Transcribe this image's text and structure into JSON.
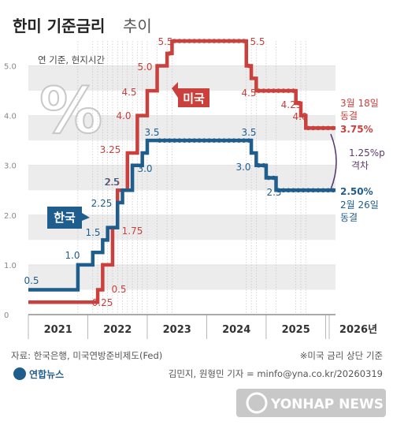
{
  "title": "한미 기준금리",
  "title_suffix": "추이",
  "note_top": "연 기준, 현지시간",
  "percent_symbol": "%",
  "source": "자료: 한국은행, 미국연방준비제도(Fed)",
  "note_right": "※미국 금리 상단 기준",
  "credit": "김민지, 원형민 기자 = minfo@yna.co.kr/20260319",
  "logo_text": "연합뉴스",
  "watermark": "YONHAP NEWS",
  "colors": {
    "us": "#c9403c",
    "kr": "#1f5d8d",
    "band": "#ececec",
    "grid": "#d8d8d8"
  },
  "chart_data": {
    "type": "line",
    "ylim": [
      0,
      5.5
    ],
    "yticks": [
      0,
      1.0,
      2.0,
      3.0,
      4.0,
      5.0
    ],
    "ytick_labels": [
      "0",
      "1.0",
      "2.0",
      "3.0",
      "4.0",
      "5.0"
    ],
    "year_labels": [
      "2021",
      "2022",
      "2023",
      "2024",
      "2025",
      "2026년"
    ],
    "series": [
      {
        "name": "미국",
        "steps": [
          0.25,
          0.25,
          0.25,
          0.25,
          0.25,
          0.25,
          0.25,
          0.25,
          0.25,
          0.25,
          0.25,
          0.25,
          0.25,
          0.25,
          0.5,
          1.0,
          1.0,
          1.75,
          2.5,
          2.5,
          3.25,
          3.25,
          4.0,
          4.0,
          4.5,
          4.5,
          5.0,
          5.0,
          5.25,
          5.5,
          5.5,
          5.5,
          5.5,
          5.5,
          5.5,
          5.5,
          5.5,
          5.5,
          5.5,
          5.5,
          5.5,
          5.5,
          5.5,
          5.5,
          5.0,
          4.75,
          4.5,
          4.5,
          4.5,
          4.5,
          4.5,
          4.5,
          4.5,
          4.5,
          4.25,
          4.0,
          3.75,
          3.75,
          3.75,
          3.75,
          3.75,
          3.75
        ],
        "labels": [
          "0.25",
          "0.5",
          "1.75",
          "2.5",
          "3.25",
          "4.0",
          "4.5",
          "5.0",
          "5.5",
          "5.5",
          "4.5",
          "4.25",
          "4.0",
          "3.75%"
        ],
        "tag": "미국",
        "end_note_date": "3월 18일",
        "end_note_action": "동결"
      },
      {
        "name": "한국",
        "steps": [
          0.5,
          0.5,
          0.5,
          0.5,
          0.5,
          0.5,
          0.5,
          0.5,
          0.5,
          0.5,
          1.0,
          1.0,
          1.0,
          1.25,
          1.25,
          1.5,
          1.75,
          1.75,
          2.25,
          2.5,
          2.5,
          3.0,
          3.0,
          3.25,
          3.5,
          3.5,
          3.5,
          3.5,
          3.5,
          3.5,
          3.5,
          3.5,
          3.5,
          3.5,
          3.5,
          3.5,
          3.5,
          3.5,
          3.5,
          3.5,
          3.5,
          3.5,
          3.5,
          3.5,
          3.5,
          3.25,
          3.0,
          3.0,
          2.75,
          2.75,
          2.5,
          2.5,
          2.5,
          2.5,
          2.5,
          2.5,
          2.5,
          2.5,
          2.5,
          2.5,
          2.5,
          2.5
        ],
        "labels": [
          "0.5",
          "1.0",
          "1.5",
          "2.25",
          "2.5",
          "3.0",
          "3.5",
          "3.5",
          "3.0",
          "2.5",
          "2.50%"
        ],
        "tag": "한국",
        "end_note_date": "2월 26일",
        "end_note_action": "동결"
      }
    ],
    "gap_value": "1.25%p",
    "gap_label": "격차"
  }
}
